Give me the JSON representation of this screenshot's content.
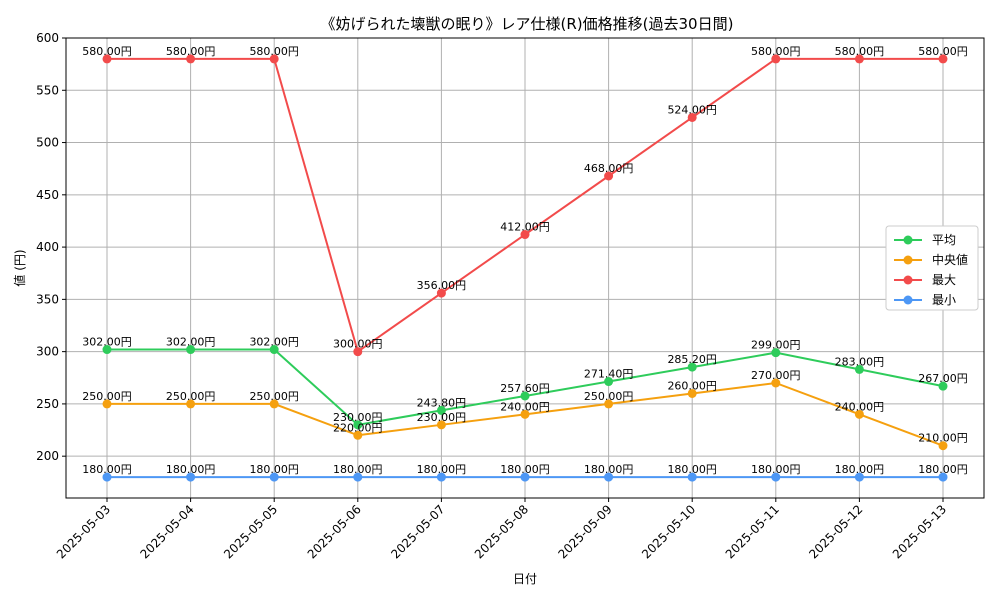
{
  "chart_data": {
    "type": "line",
    "title": "《妨げられた壊獣の眠り》レア仕様(R)価格推移(過去30日間)",
    "xlabel": "日付",
    "ylabel": "値 (円)",
    "ylim": [
      160,
      600
    ],
    "yticks": [
      200,
      250,
      300,
      350,
      400,
      450,
      500,
      550,
      600
    ],
    "grid": true,
    "legend_position": "center-right",
    "categories": [
      "2025-05-03",
      "2025-05-04",
      "2025-05-05",
      "2025-05-06",
      "2025-05-07",
      "2025-05-08",
      "2025-05-09",
      "2025-05-10",
      "2025-05-11",
      "2025-05-12",
      "2025-05-13"
    ],
    "series": [
      {
        "name": "平均",
        "color": "#2ecc5b",
        "values": [
          302.0,
          302.0,
          302.0,
          230.0,
          243.8,
          257.6,
          271.4,
          285.2,
          299.0,
          283.0,
          267.0
        ],
        "labels": [
          "302.00円",
          "302.00円",
          "302.00円",
          "230.00円",
          "243.80円",
          "257.60円",
          "271.40円",
          "285.20円",
          "299.00円",
          "283.00円",
          "267.00円"
        ]
      },
      {
        "name": "中央値",
        "color": "#f5a00f",
        "values": [
          250.0,
          250.0,
          250.0,
          220.0,
          230.0,
          240.0,
          250.0,
          260.0,
          270.0,
          240.0,
          210.0
        ],
        "labels": [
          "250.00円",
          "250.00円",
          "250.00円",
          "220.00円",
          "230.00円",
          "240.00円",
          "250.00円",
          "260.00円",
          "270.00円",
          "240.00円",
          "210.00円"
        ]
      },
      {
        "name": "最大",
        "color": "#f24b4b",
        "values": [
          580.0,
          580.0,
          580.0,
          300.0,
          356.0,
          412.0,
          468.0,
          524.0,
          580.0,
          580.0,
          580.0
        ],
        "labels": [
          "580.00円",
          "580.00円",
          "580.00円",
          "300.00円",
          "356.00円",
          "412.00円",
          "468.00円",
          "524.00円",
          "580.00円",
          "580.00円",
          "580.00円"
        ]
      },
      {
        "name": "最小",
        "color": "#4d97f5",
        "values": [
          180.0,
          180.0,
          180.0,
          180.0,
          180.0,
          180.0,
          180.0,
          180.0,
          180.0,
          180.0,
          180.0
        ],
        "labels": [
          "180.00円",
          "180.00円",
          "180.00円",
          "180.00円",
          "180.00円",
          "180.00円",
          "180.00円",
          "180.00円",
          "180.00円",
          "180.00円",
          "180.00円"
        ]
      }
    ]
  }
}
